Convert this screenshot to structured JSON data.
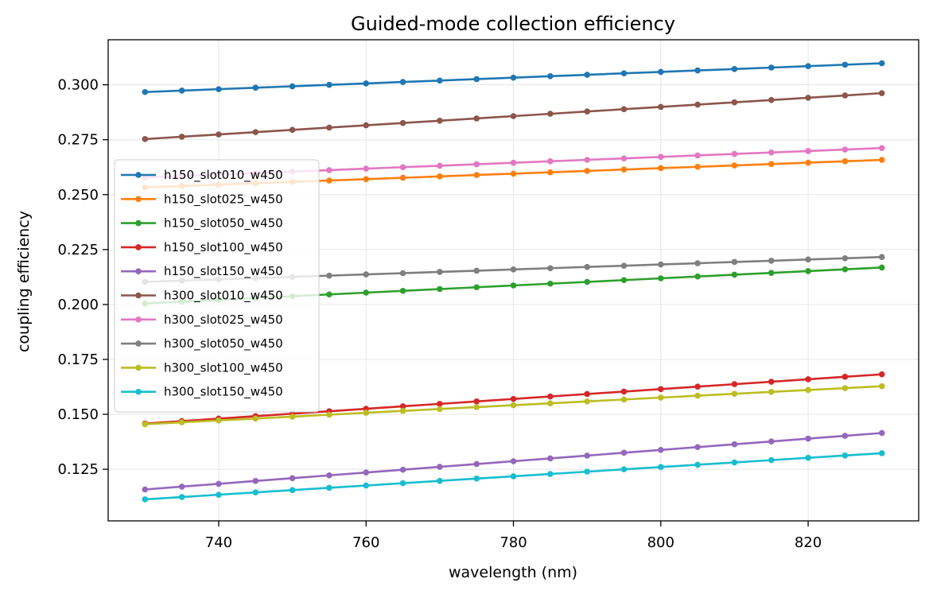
{
  "chart_data": {
    "type": "line",
    "title": "Guided-mode collection efficiency",
    "xlabel": "wavelength (nm)",
    "ylabel": "coupling efficiency",
    "xlim": [
      725,
      835
    ],
    "ylim": [
      0.1015,
      0.3205
    ],
    "xticks": [
      740,
      760,
      780,
      800,
      820
    ],
    "yticks": [
      0.125,
      0.15,
      0.175,
      0.2,
      0.225,
      0.25,
      0.275,
      0.3
    ],
    "ytick_labels": [
      "0.125",
      "0.150",
      "0.175",
      "0.200",
      "0.225",
      "0.250",
      "0.275",
      "0.300"
    ],
    "grid": true,
    "legend_position": "center-left",
    "x_start": 730,
    "x_step": 5,
    "x_count": 21,
    "series": [
      {
        "name": "h150_slot010_w450",
        "color": "#1f77b4",
        "start": 0.2967,
        "end": 0.3098
      },
      {
        "name": "h150_slot025_w450",
        "color": "#ff7f0e",
        "start": 0.2533,
        "end": 0.2658
      },
      {
        "name": "h150_slot050_w450",
        "color": "#2ca02c",
        "start": 0.2005,
        "end": 0.2168
      },
      {
        "name": "h150_slot100_w450",
        "color": "#d62728",
        "start": 0.1458,
        "end": 0.1682
      },
      {
        "name": "h150_slot150_w450",
        "color": "#9467bd",
        "start": 0.1158,
        "end": 0.1415
      },
      {
        "name": "h300_slot010_w450",
        "color": "#8c564b",
        "start": 0.2753,
        "end": 0.2962
      },
      {
        "name": "h300_slot025_w450",
        "color": "#e377c2",
        "start": 0.2578,
        "end": 0.2712
      },
      {
        "name": "h300_slot050_w450",
        "color": "#7f7f7f",
        "start": 0.2103,
        "end": 0.2216
      },
      {
        "name": "h300_slot100_w450",
        "color": "#bcbd22",
        "start": 0.1455,
        "end": 0.1628
      },
      {
        "name": "h300_slot150_w450",
        "color": "#17becf",
        "start": 0.1113,
        "end": 0.1323
      }
    ]
  }
}
